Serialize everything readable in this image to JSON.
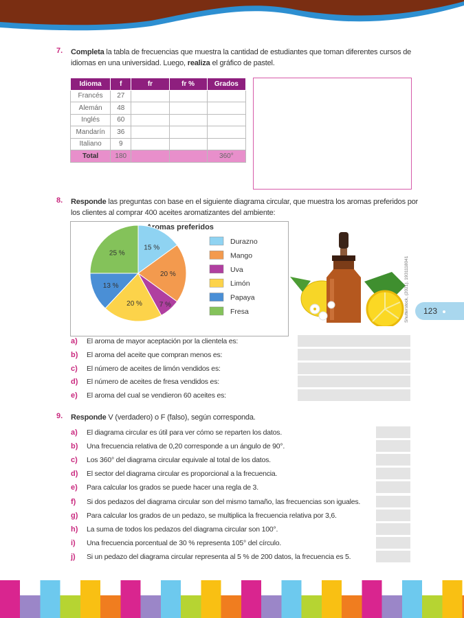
{
  "page_number": "123",
  "credit": "Shutterstock, (2021). 1931118041",
  "q7": {
    "number": "7.",
    "lead": "Completa",
    "text": " la tabla de frecuencias que muestra la cantidad de estudiantes que toman diferentes cursos de idiomas en una universidad. Luego, ",
    "bold": "realiza",
    "tail": " el gráfico de pastel.",
    "table": {
      "header": [
        "Idioma",
        "f",
        "fr",
        "fr %",
        "Grados"
      ],
      "rows": [
        [
          "Francés",
          27
        ],
        [
          "Alemán",
          48
        ],
        [
          "Inglés",
          60
        ],
        [
          "Mandarín",
          36
        ],
        [
          "Italiano",
          9
        ]
      ],
      "total": {
        "label": "Total",
        "f": 180,
        "grados": "360°"
      }
    }
  },
  "q8": {
    "number": "8.",
    "lead": "Responde",
    "text": " las preguntas con base en el siguiente diagrama circular, que muestra los aromas preferidos por los clientes al comprar 400 aceites aromatizantes del ambiente:",
    "chart": {
      "type": "pie",
      "title": "Aromas preferidos",
      "categories": [
        "Durazno",
        "Mango",
        "Uva",
        "Limón",
        "Papaya",
        "Fresa"
      ],
      "values": [
        15,
        20,
        7,
        20,
        13,
        25
      ],
      "value_labels": [
        "15 %",
        "20 %",
        "7 %",
        "20 %",
        "13 %",
        "25 %"
      ],
      "colors": [
        "#8fd3f2",
        "#f39a4e",
        "#b03fa0",
        "#fcd34a",
        "#4a8fd6",
        "#84c25a"
      ]
    },
    "items": [
      {
        "letter": "a)",
        "text": "El aroma de mayor aceptación por la clientela es:"
      },
      {
        "letter": "b)",
        "text": "El aroma del aceite que compran menos es:"
      },
      {
        "letter": "c)",
        "text": "El número de aceites de limón vendidos es:"
      },
      {
        "letter": "d)",
        "text": "El número de aceites de fresa vendidos es:"
      },
      {
        "letter": "e)",
        "text": "El aroma del cual se vendieron 60 aceites es:"
      }
    ]
  },
  "q9": {
    "number": "9.",
    "lead": "Responde",
    "text": " V (verdadero) o F (falso), según corresponda.",
    "items": [
      {
        "letter": "a)",
        "text": "El diagrama circular es útil para ver cómo se reparten los datos."
      },
      {
        "letter": "b)",
        "text": "Una frecuencia relativa de 0,20 corresponde a un ángulo de 90°."
      },
      {
        "letter": "c)",
        "text": "Los 360° del diagrama circular equivale al total de los datos."
      },
      {
        "letter": "d)",
        "text": "El sector del diagrama circular es proporcional a la frecuencia."
      },
      {
        "letter": "e)",
        "text": "Para calcular los grados se puede hacer una regla de 3."
      },
      {
        "letter": "f)",
        "text": "Si dos pedazos del diagrama circular son del mismo tamaño, las frecuencias son iguales."
      },
      {
        "letter": "g)",
        "text": "Para calcular los grados de un pedazo, se multiplica la frecuencia relativa por 3,6."
      },
      {
        "letter": "h)",
        "text": "La suma de todos los pedazos del diagrama circular son 100°."
      },
      {
        "letter": "i)",
        "text": "Una frecuencia porcentual de 30 % representa 105° del círculo."
      },
      {
        "letter": "j)",
        "text": "Si un pedazo del diagrama circular representa al 5 % de 200 datos, la frecuencia es 5."
      }
    ]
  }
}
